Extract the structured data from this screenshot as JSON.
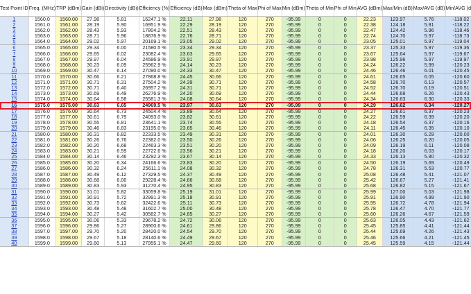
{
  "columns": [
    {
      "key": "id",
      "label": "Test Point ID",
      "bg": "#dbe7f6"
    },
    {
      "key": "freq",
      "label": "Freq. (MHz)",
      "bg": "#ffffff"
    },
    {
      "key": "trp",
      "label": "TRP (dBm)",
      "bg": "#fffbc6"
    },
    {
      "key": "gain",
      "label": "Gain (dBi)",
      "bg": "#ffffff"
    },
    {
      "key": "directivity",
      "label": "Directivity (dBi)",
      "bg": "#ffffff"
    },
    {
      "key": "efficiency_pct",
      "label": "Efficiency (%)",
      "bg": "#ffffff"
    },
    {
      "key": "efficiency_db",
      "label": "Efficiency (dB)",
      "bg": "#d7f0c7"
    },
    {
      "key": "max",
      "label": "Max (dBm)",
      "bg": "#fffbc6"
    },
    {
      "key": "theta_max",
      "label": "Theta of Max",
      "bg": "#fffbc6"
    },
    {
      "key": "phi_max",
      "label": "Phi of Max",
      "bg": "#fffbc6"
    },
    {
      "key": "min",
      "label": "Min (dBm)",
      "bg": "#d7f0c7"
    },
    {
      "key": "theta_min",
      "label": "Theta of Min",
      "bg": "#d7f0c7"
    },
    {
      "key": "phi_min",
      "label": "Phi of Min",
      "bg": "#d7f0c7"
    },
    {
      "key": "avg",
      "label": "AVG (dBm)",
      "bg": "#fffbc6"
    },
    {
      "key": "max_min",
      "label": "Max/Min (dB)",
      "bg": "#cfe0f5"
    },
    {
      "key": "max_avg",
      "label": "Max/AVG (dB)",
      "bg": "#cfe0f5"
    },
    {
      "key": "min_avg",
      "label": "Min/AVG (dB)",
      "bg": "#cfe0f5"
    }
  ],
  "highlighted_row_id": "16",
  "highlight_color": "#e0202a",
  "rows": [
    [
      "1",
      "1560.0",
      "1560.00",
      "27.98",
      "5.81",
      "16247.1 %",
      "22.11",
      "27.98",
      "120",
      "270",
      "-95.99",
      "0",
      "0",
      "22.23",
      "123.97",
      "5.76",
      "-118.02"
    ],
    [
      "2",
      "1561.0",
      "1561.00",
      "28.19",
      "5.90",
      "16951.9 %",
      "22.29",
      "28.19",
      "120",
      "270",
      "-95.99",
      "0",
      "0",
      "22.38",
      "124.18",
      "5.81",
      "-118.22"
    ],
    [
      "3",
      "1562.0",
      "1562.00",
      "28.43",
      "5.93",
      "17804.2 %",
      "22.51",
      "28.43",
      "120",
      "270",
      "-95.99",
      "0",
      "0",
      "22.47",
      "124.42",
      "5.96",
      "-118.46"
    ],
    [
      "4",
      "1563.0",
      "1563.00",
      "28.71",
      "5.96",
      "18876.9 %",
      "22.76",
      "28.71",
      "120",
      "270",
      "-95.99",
      "0",
      "0",
      "22.74",
      "124.70",
      "5.97",
      "-118.73"
    ],
    [
      "5",
      "1564.0",
      "1564.00",
      "29.02",
      "5.97",
      "20169.1 %",
      "23.05",
      "29.02",
      "120",
      "270",
      "-95.99",
      "0",
      "0",
      "23.05",
      "125.01",
      "5.97",
      "-119.04"
    ],
    [
      "6",
      "1565.0",
      "1565.00",
      "29.34",
      "6.00",
      "21580.5 %",
      "23.34",
      "29.34",
      "120",
      "270",
      "-95.99",
      "0",
      "0",
      "23.37",
      "125.33",
      "5.97",
      "-119.36"
    ],
    [
      "7",
      "1566.0",
      "1566.00",
      "29.65",
      "6.02",
      "23082.4 %",
      "23.63",
      "29.65",
      "120",
      "270",
      "-95.99",
      "0",
      "0",
      "23.67",
      "125.64",
      "5.97",
      "-119.67"
    ],
    [
      "8",
      "1567.0",
      "1567.00",
      "29.97",
      "6.04",
      "24586.9 %",
      "23.91",
      "29.97",
      "120",
      "270",
      "-95.99",
      "0",
      "0",
      "23.98",
      "125.96",
      "5.97",
      "-119.97"
    ],
    [
      "9",
      "1568.0",
      "1568.00",
      "30.23",
      "6.09",
      "25962.9 %",
      "24.14",
      "30.23",
      "120",
      "270",
      "-95.99",
      "0",
      "0",
      "24.24",
      "126.22",
      "5.99",
      "-120.23"
    ],
    [
      "10",
      "1569.0",
      "1569.00",
      "30.47",
      "6.14",
      "27090.0 %",
      "24.33",
      "30.47",
      "120",
      "270",
      "-95.99",
      "0",
      "0",
      "24.46",
      "126.46",
      "6.01",
      "-120.45"
    ],
    [
      "11",
      "1570.0",
      "1570.00",
      "30.66",
      "6.21",
      "27868.8 %",
      "24.45",
      "30.66",
      "120",
      "270",
      "-95.99",
      "0",
      "0",
      "24.61",
      "126.65",
      "6.05",
      "-120.60"
    ],
    [
      "12",
      "1571.0",
      "1571.00",
      "30.71",
      "6.31",
      "27504.2 %",
      "24.39",
      "30.71",
      "120",
      "270",
      "-95.99",
      "0",
      "0",
      "24.58",
      "126.70",
      "6.13",
      "-120.57"
    ],
    [
      "13",
      "1572.0",
      "1572.00",
      "30.71",
      "6.40",
      "26957.2 %",
      "24.31",
      "30.71",
      "120",
      "270",
      "-95.99",
      "0",
      "0",
      "24.52",
      "126.70",
      "6.19",
      "-120.51"
    ],
    [
      "14",
      "1573.0",
      "1573.00",
      "30.69",
      "6.49",
      "26276.9 %",
      "24.20",
      "30.69",
      "120",
      "270",
      "-95.99",
      "0",
      "0",
      "24.44",
      "126.68",
      "6.26",
      "-120.43"
    ],
    [
      "15",
      "1574.0",
      "1574.00",
      "30.64",
      "6.58",
      "25581.3 %",
      "24.08",
      "30.64",
      "120",
      "270",
      "-95.99",
      "0",
      "0",
      "24.34",
      "126.63",
      "6.30",
      "-120.33"
    ],
    [
      "16",
      "1575.0",
      "1575.00",
      "30.63",
      "6.65",
      "24969.5 %",
      "23.97",
      "30.63",
      "120",
      "270",
      "-95.99",
      "0",
      "0",
      "24.29",
      "126.62",
      "6.34",
      "-120.27"
    ],
    [
      "17",
      "1576.0",
      "1576.00",
      "30.64",
      "6.73",
      "24504.4 %",
      "23.89",
      "30.64",
      "120",
      "270",
      "-95.99",
      "0",
      "0",
      "24.27",
      "126.61",
      "6.37",
      "-120.23"
    ],
    [
      "18",
      "1577.0",
      "1577.00",
      "30.61",
      "6.79",
      "24093.0 %",
      "23.82",
      "30.61",
      "120",
      "270",
      "-95.99",
      "0",
      "0",
      "24.22",
      "126.59",
      "6.39",
      "-120.20"
    ],
    [
      "19",
      "1578.0",
      "1578.00",
      "30.55",
      "6.81",
      "23641.1 %",
      "23.74",
      "30.55",
      "120",
      "270",
      "-95.99",
      "0",
      "0",
      "24.18",
      "126.54",
      "6.37",
      "-120.16"
    ],
    [
      "20",
      "1579.0",
      "1579.00",
      "30.46",
      "6.83",
      "23195.0 %",
      "23.65",
      "30.46",
      "120",
      "270",
      "-95.99",
      "0",
      "0",
      "24.11",
      "126.45",
      "6.35",
      "-120.10"
    ],
    [
      "21",
      "1580.0",
      "1580.00",
      "30.31",
      "6.82",
      "22333.5 %",
      "23.49",
      "30.31",
      "120",
      "270",
      "-95.99",
      "0",
      "0",
      "24.01",
      "126.30",
      "6.29",
      "-120.00"
    ],
    [
      "22",
      "1581.0",
      "1581.00",
      "30.26",
      "6.76",
      "22382.0 %",
      "23.50",
      "30.26",
      "120",
      "270",
      "-95.99",
      "0",
      "0",
      "24.06",
      "126.25",
      "6.20",
      "-120.05"
    ],
    [
      "23",
      "1582.0",
      "1582.00",
      "30.20",
      "6.68",
      "22463.3 %",
      "23.51",
      "30.20",
      "120",
      "270",
      "-95.99",
      "0",
      "0",
      "24.09",
      "126.19",
      "6.11",
      "-120.08"
    ],
    [
      "24",
      "1583.0",
      "1583.00",
      "30.21",
      "6.59",
      "22722.6 %",
      "23.56",
      "30.21",
      "120",
      "270",
      "-95.99",
      "0",
      "0",
      "24.18",
      "126.20",
      "6.03",
      "-120.17"
    ],
    [
      "25",
      "1584.0",
      "1584.00",
      "30.14",
      "6.46",
      "23292.3 %",
      "23.67",
      "30.14",
      "120",
      "270",
      "-95.99",
      "0",
      "0",
      "24.33",
      "126.13",
      "5.80",
      "-120.32"
    ],
    [
      "26",
      "1585.0",
      "1585.00",
      "30.20",
      "6.34",
      "24166.6 %",
      "23.83",
      "30.20",
      "120",
      "270",
      "-95.99",
      "0",
      "0",
      "24.50",
      "126.19",
      "5.69",
      "-120.49"
    ],
    [
      "27",
      "1586.0",
      "1586.00",
      "30.32",
      "6.24",
      "25611.1 %",
      "24.08",
      "30.32",
      "120",
      "270",
      "-95.99",
      "0",
      "0",
      "24.78",
      "126.31",
      "5.53",
      "-120.77"
    ],
    [
      "28",
      "1587.0",
      "1587.00",
      "30.49",
      "6.12",
      "27329.5 %",
      "24.37",
      "30.49",
      "120",
      "270",
      "-95.99",
      "0",
      "0",
      "25.08",
      "126.48",
      "5.41",
      "-121.07"
    ],
    [
      "29",
      "1588.0",
      "1588.00",
      "30.68",
      "6.00",
      "29228.4 %",
      "24.66",
      "30.68",
      "120",
      "270",
      "-95.99",
      "0",
      "0",
      "25.42",
      "126.67",
      "5.27",
      "-121.41"
    ],
    [
      "30",
      "1589.0",
      "1589.00",
      "30.83",
      "5.93",
      "31270.4 %",
      "24.95",
      "30.83",
      "120",
      "270",
      "-95.99",
      "0",
      "0",
      "25.68",
      "126.82",
      "5.15",
      "-121.67"
    ],
    [
      "31",
      "1590.0",
      "1590.00",
      "31.01",
      "5.82",
      "33059.8 %",
      "25.19",
      "31.01",
      "120",
      "270",
      "-95.99",
      "0",
      "0",
      "25.99",
      "127.00",
      "5.03",
      "-121.98"
    ],
    [
      "32",
      "1591.0",
      "1591.00",
      "30.91",
      "5.72",
      "32991.3 %",
      "25.18",
      "30.91",
      "120",
      "270",
      "-95.99",
      "0",
      "0",
      "25.91",
      "126.90",
      "4.99",
      "-121.90"
    ],
    [
      "33",
      "1592.0",
      "1592.00",
      "30.73",
      "5.62",
      "32422.6 %",
      "25.11",
      "30.73",
      "120",
      "270",
      "-95.99",
      "0",
      "0",
      "25.95",
      "126.72",
      "4.78",
      "-121.94"
    ],
    [
      "34",
      "1593.0",
      "1593.00",
      "30.48",
      "5.48",
      "31602.7 %",
      "25.00",
      "30.48",
      "120",
      "270",
      "-95.99",
      "0",
      "0",
      "25.78",
      "126.47",
      "4.70",
      "-121.77"
    ],
    [
      "35",
      "1594.0",
      "1594.00",
      "30.27",
      "5.42",
      "30582.7 %",
      "24.85",
      "30.27",
      "120",
      "270",
      "-95.99",
      "0",
      "0",
      "25.60",
      "126.26",
      "4.67",
      "-121.59"
    ],
    [
      "36",
      "1595.0",
      "1595.00",
      "30.06",
      "5.33",
      "29678.2 %",
      "24.72",
      "30.06",
      "120",
      "270",
      "-95.99",
      "0",
      "0",
      "25.63",
      "126.05",
      "4.43",
      "-121.62"
    ],
    [
      "37",
      "1596.0",
      "1596.00",
      "29.86",
      "5.27",
      "28900.6 %",
      "24.61",
      "29.86",
      "120",
      "270",
      "-95.99",
      "0",
      "0",
      "25.45",
      "125.85",
      "4.41",
      "-121.44"
    ],
    [
      "38",
      "1597.0",
      "1597.00",
      "29.70",
      "5.20",
      "28420.0 %",
      "24.54",
      "29.70",
      "120",
      "270",
      "-95.99",
      "0",
      "0",
      "25.44",
      "125.69",
      "4.26",
      "-121.43"
    ],
    [
      "39",
      "1598.0",
      "1598.00",
      "29.67",
      "5.18",
      "28140.6 %",
      "24.49",
      "29.67",
      "120",
      "270",
      "-95.99",
      "0",
      "0",
      "25.46",
      "125.66",
      "4.21",
      "-121.45"
    ],
    [
      "40",
      "1599.0",
      "1599.00",
      "29.60",
      "5.13",
      "27955.1 %",
      "24.47",
      "29.60",
      "120",
      "270",
      "-95.99",
      "0",
      "0",
      "25.45",
      "125.59",
      "4.15",
      "-121.44"
    ]
  ]
}
